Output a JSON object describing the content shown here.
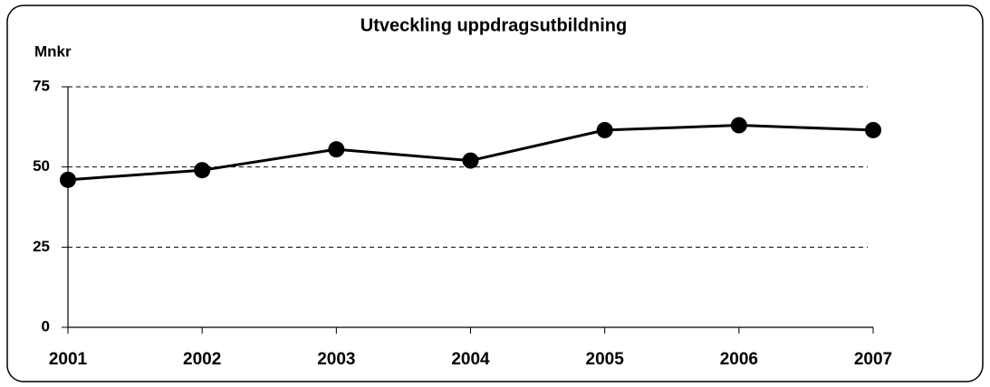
{
  "chart_data": {
    "type": "line",
    "title": "Utveckling uppdragsutbildning",
    "y_label": "Mnkr",
    "categories": [
      "2001",
      "2002",
      "2003",
      "2004",
      "2005",
      "2006",
      "2007"
    ],
    "series": [
      {
        "name": "Mnkr",
        "color": "#000000",
        "values": [
          46,
          49,
          55.5,
          52,
          61.5,
          63,
          61.5
        ]
      }
    ],
    "ylim": [
      0,
      75
    ],
    "yticks": [
      0,
      25,
      50,
      75
    ],
    "grid": true
  }
}
